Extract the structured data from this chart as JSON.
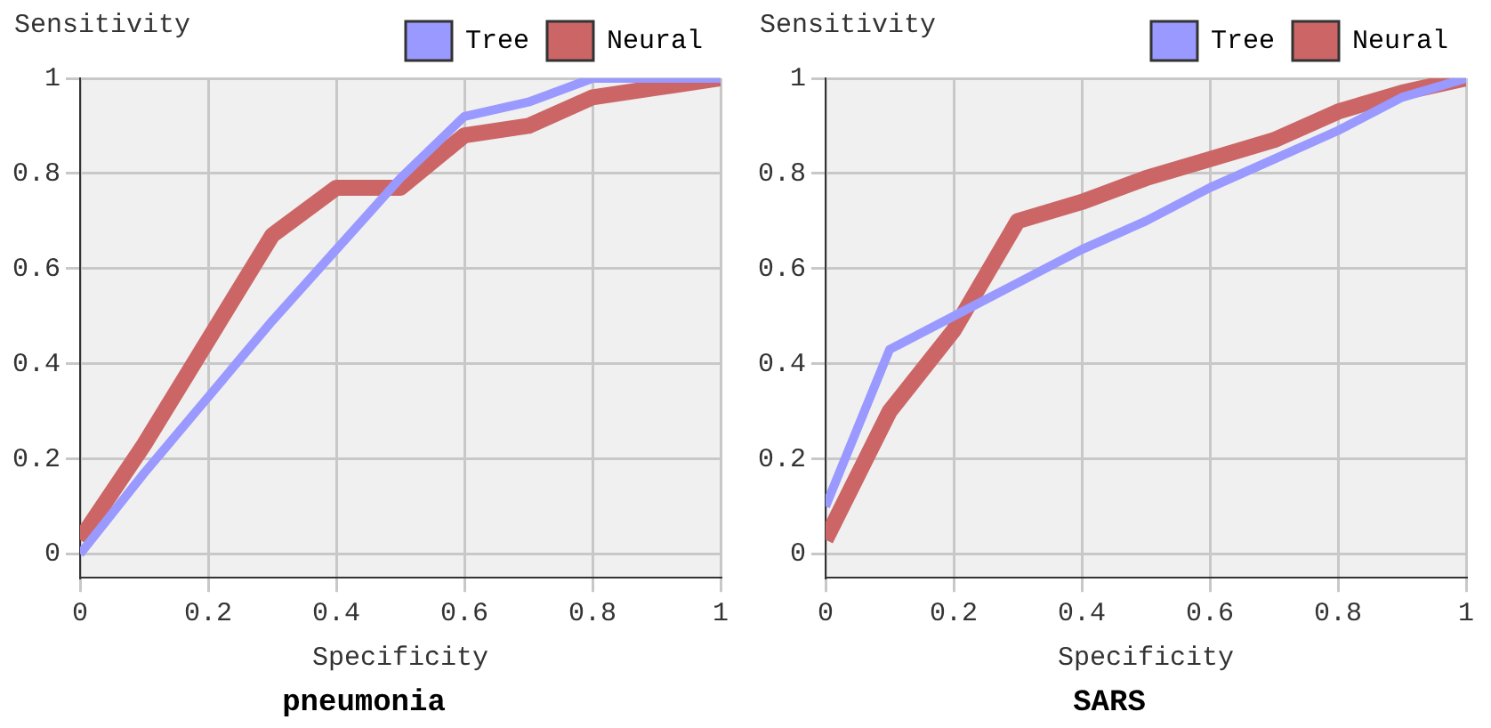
{
  "chart_data": [
    {
      "type": "line",
      "title": "pneumonia",
      "xlabel": "Specificity",
      "ylabel": "Sensitivity",
      "x": [
        0,
        0.1,
        0.2,
        0.3,
        0.4,
        0.5,
        0.6,
        0.7,
        0.8,
        0.9,
        1
      ],
      "series": [
        {
          "name": "Tree",
          "color": "#9999ff",
          "values": [
            0,
            0.17,
            0.33,
            0.49,
            0.64,
            0.79,
            0.92,
            0.95,
            1,
            1,
            1
          ]
        },
        {
          "name": "Neural",
          "color": "#cc6666",
          "values": [
            0.03,
            0.23,
            0.45,
            0.67,
            0.77,
            0.77,
            0.88,
            0.9,
            0.96,
            0.98,
            1
          ]
        }
      ],
      "xlim": [
        0,
        1
      ],
      "xticks": [
        0,
        0.2,
        0.4,
        0.6,
        0.8,
        1
      ],
      "ylim": [
        -0.05,
        1
      ],
      "yticks": [
        0,
        0.2,
        0.4,
        0.6,
        0.8,
        1
      ],
      "grid": true,
      "legend": "top right",
      "marker": "none",
      "line_style": "solid"
    },
    {
      "type": "line",
      "title": "SARS",
      "xlabel": "Specificity",
      "ylabel": "Sensitivity",
      "x": [
        0,
        0.1,
        0.2,
        0.3,
        0.4,
        0.5,
        0.6,
        0.7,
        0.8,
        0.9,
        1
      ],
      "series": [
        {
          "name": "Tree",
          "color": "#9999ff",
          "values": [
            0.1,
            0.43,
            0.5,
            0.57,
            0.64,
            0.7,
            0.77,
            0.83,
            0.89,
            0.96,
            1
          ]
        },
        {
          "name": "Neural",
          "color": "#cc6666",
          "values": [
            0.03,
            0.3,
            0.47,
            0.7,
            0.74,
            0.79,
            0.83,
            0.87,
            0.93,
            0.97,
            1
          ]
        }
      ],
      "xlim": [
        0,
        1
      ],
      "xticks": [
        0,
        0.2,
        0.4,
        0.6,
        0.8,
        1
      ],
      "ylim": [
        -0.05,
        1
      ],
      "yticks": [
        0,
        0.2,
        0.4,
        0.6,
        0.8,
        1
      ],
      "grid": true,
      "legend": "top right",
      "marker": "none",
      "line_style": "solid"
    }
  ]
}
